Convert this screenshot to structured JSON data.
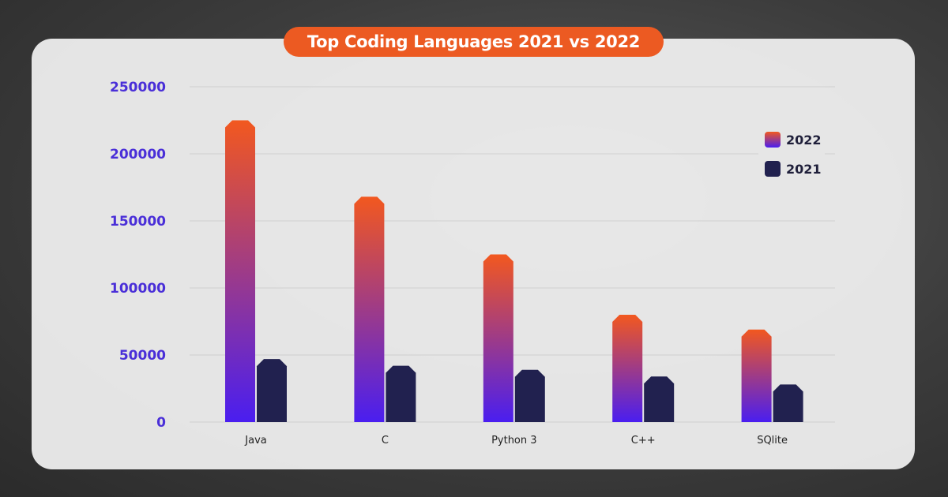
{
  "chart_data": {
    "type": "bar",
    "title": "Top Coding Languages 2021 vs 2022",
    "categories": [
      "Java",
      "C",
      "Python 3",
      "C++",
      "SQlite"
    ],
    "series": [
      {
        "name": "2022",
        "values": [
          225000,
          168000,
          125000,
          80000,
          69000
        ]
      },
      {
        "name": "2021",
        "values": [
          47000,
          42000,
          39000,
          34000,
          28000
        ]
      }
    ],
    "y_ticks": [
      0,
      50000,
      100000,
      150000,
      200000,
      250000
    ],
    "y_tick_labels": [
      "0",
      "50000",
      "100000",
      "150000",
      "200000",
      "250000"
    ],
    "ylim": [
      0,
      250000
    ],
    "xlabel": "",
    "ylabel": "",
    "grid": true,
    "legend_placement": "top-right",
    "colors": {
      "2022_top": "#f2581f",
      "2022_bottom": "#4a1ef0",
      "2021": "#21214f",
      "title_bg": "#ec5a22",
      "y_tick": "#4a2fd8"
    }
  }
}
